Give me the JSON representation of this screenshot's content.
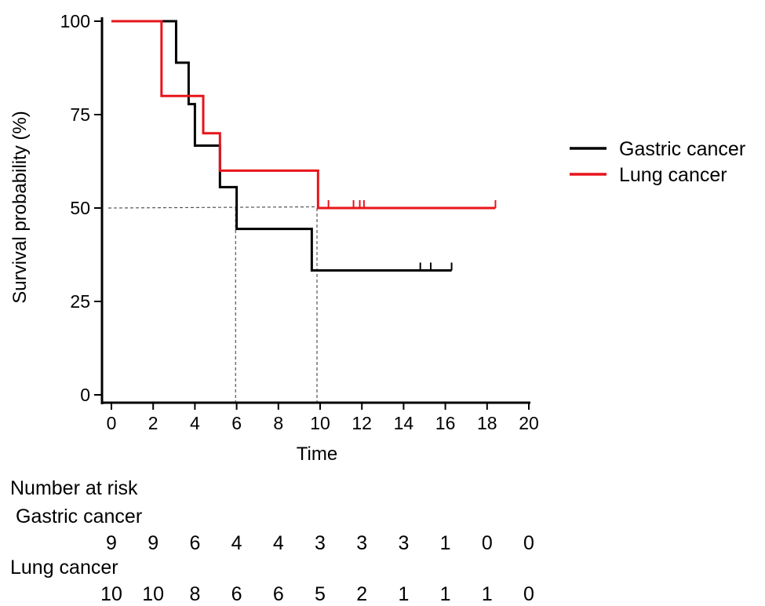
{
  "chart_data": {
    "type": "line",
    "subtype": "kaplan-meier",
    "xlabel": "Time",
    "ylabel": "Survival probability (%)",
    "xlim": [
      0,
      20
    ],
    "ylim": [
      0,
      100
    ],
    "xticks": [
      0,
      2,
      4,
      6,
      8,
      10,
      12,
      14,
      16,
      18,
      20
    ],
    "yticks": [
      0,
      25,
      50,
      75,
      100
    ],
    "grid": false,
    "legend_position": "right",
    "series": [
      {
        "name": "Gastric cancer",
        "color": "#000000",
        "steps": [
          [
            0,
            100
          ],
          [
            3.1,
            88.9
          ],
          [
            3.7,
            77.8
          ],
          [
            4.0,
            66.7
          ],
          [
            5.2,
            55.6
          ],
          [
            6.0,
            44.4
          ],
          [
            9.6,
            33.3
          ]
        ],
        "end": 16.3,
        "censored": [
          14.8,
          15.3,
          16.3
        ]
      },
      {
        "name": "Lung cancer",
        "color": "#e8141b",
        "steps": [
          [
            0,
            100
          ],
          [
            2.4,
            80
          ],
          [
            4.4,
            70
          ],
          [
            5.2,
            60
          ],
          [
            9.9,
            50
          ]
        ],
        "end": 18.4,
        "censored": [
          10.4,
          11.6,
          11.9,
          12.1,
          18.4
        ]
      }
    ],
    "median_lines": {
      "y": 50,
      "x": [
        5.95,
        9.85
      ]
    },
    "risk_table": {
      "title": "Number at risk",
      "times": [
        0,
        2,
        4,
        6,
        8,
        10,
        12,
        14,
        16,
        18,
        20
      ],
      "groups": [
        {
          "name": "Gastric cancer",
          "values": [
            9,
            9,
            6,
            4,
            4,
            3,
            3,
            3,
            1,
            0,
            0
          ]
        },
        {
          "name": "Lung cancer",
          "values": [
            10,
            10,
            8,
            6,
            6,
            5,
            2,
            1,
            1,
            1,
            0
          ]
        }
      ]
    }
  }
}
